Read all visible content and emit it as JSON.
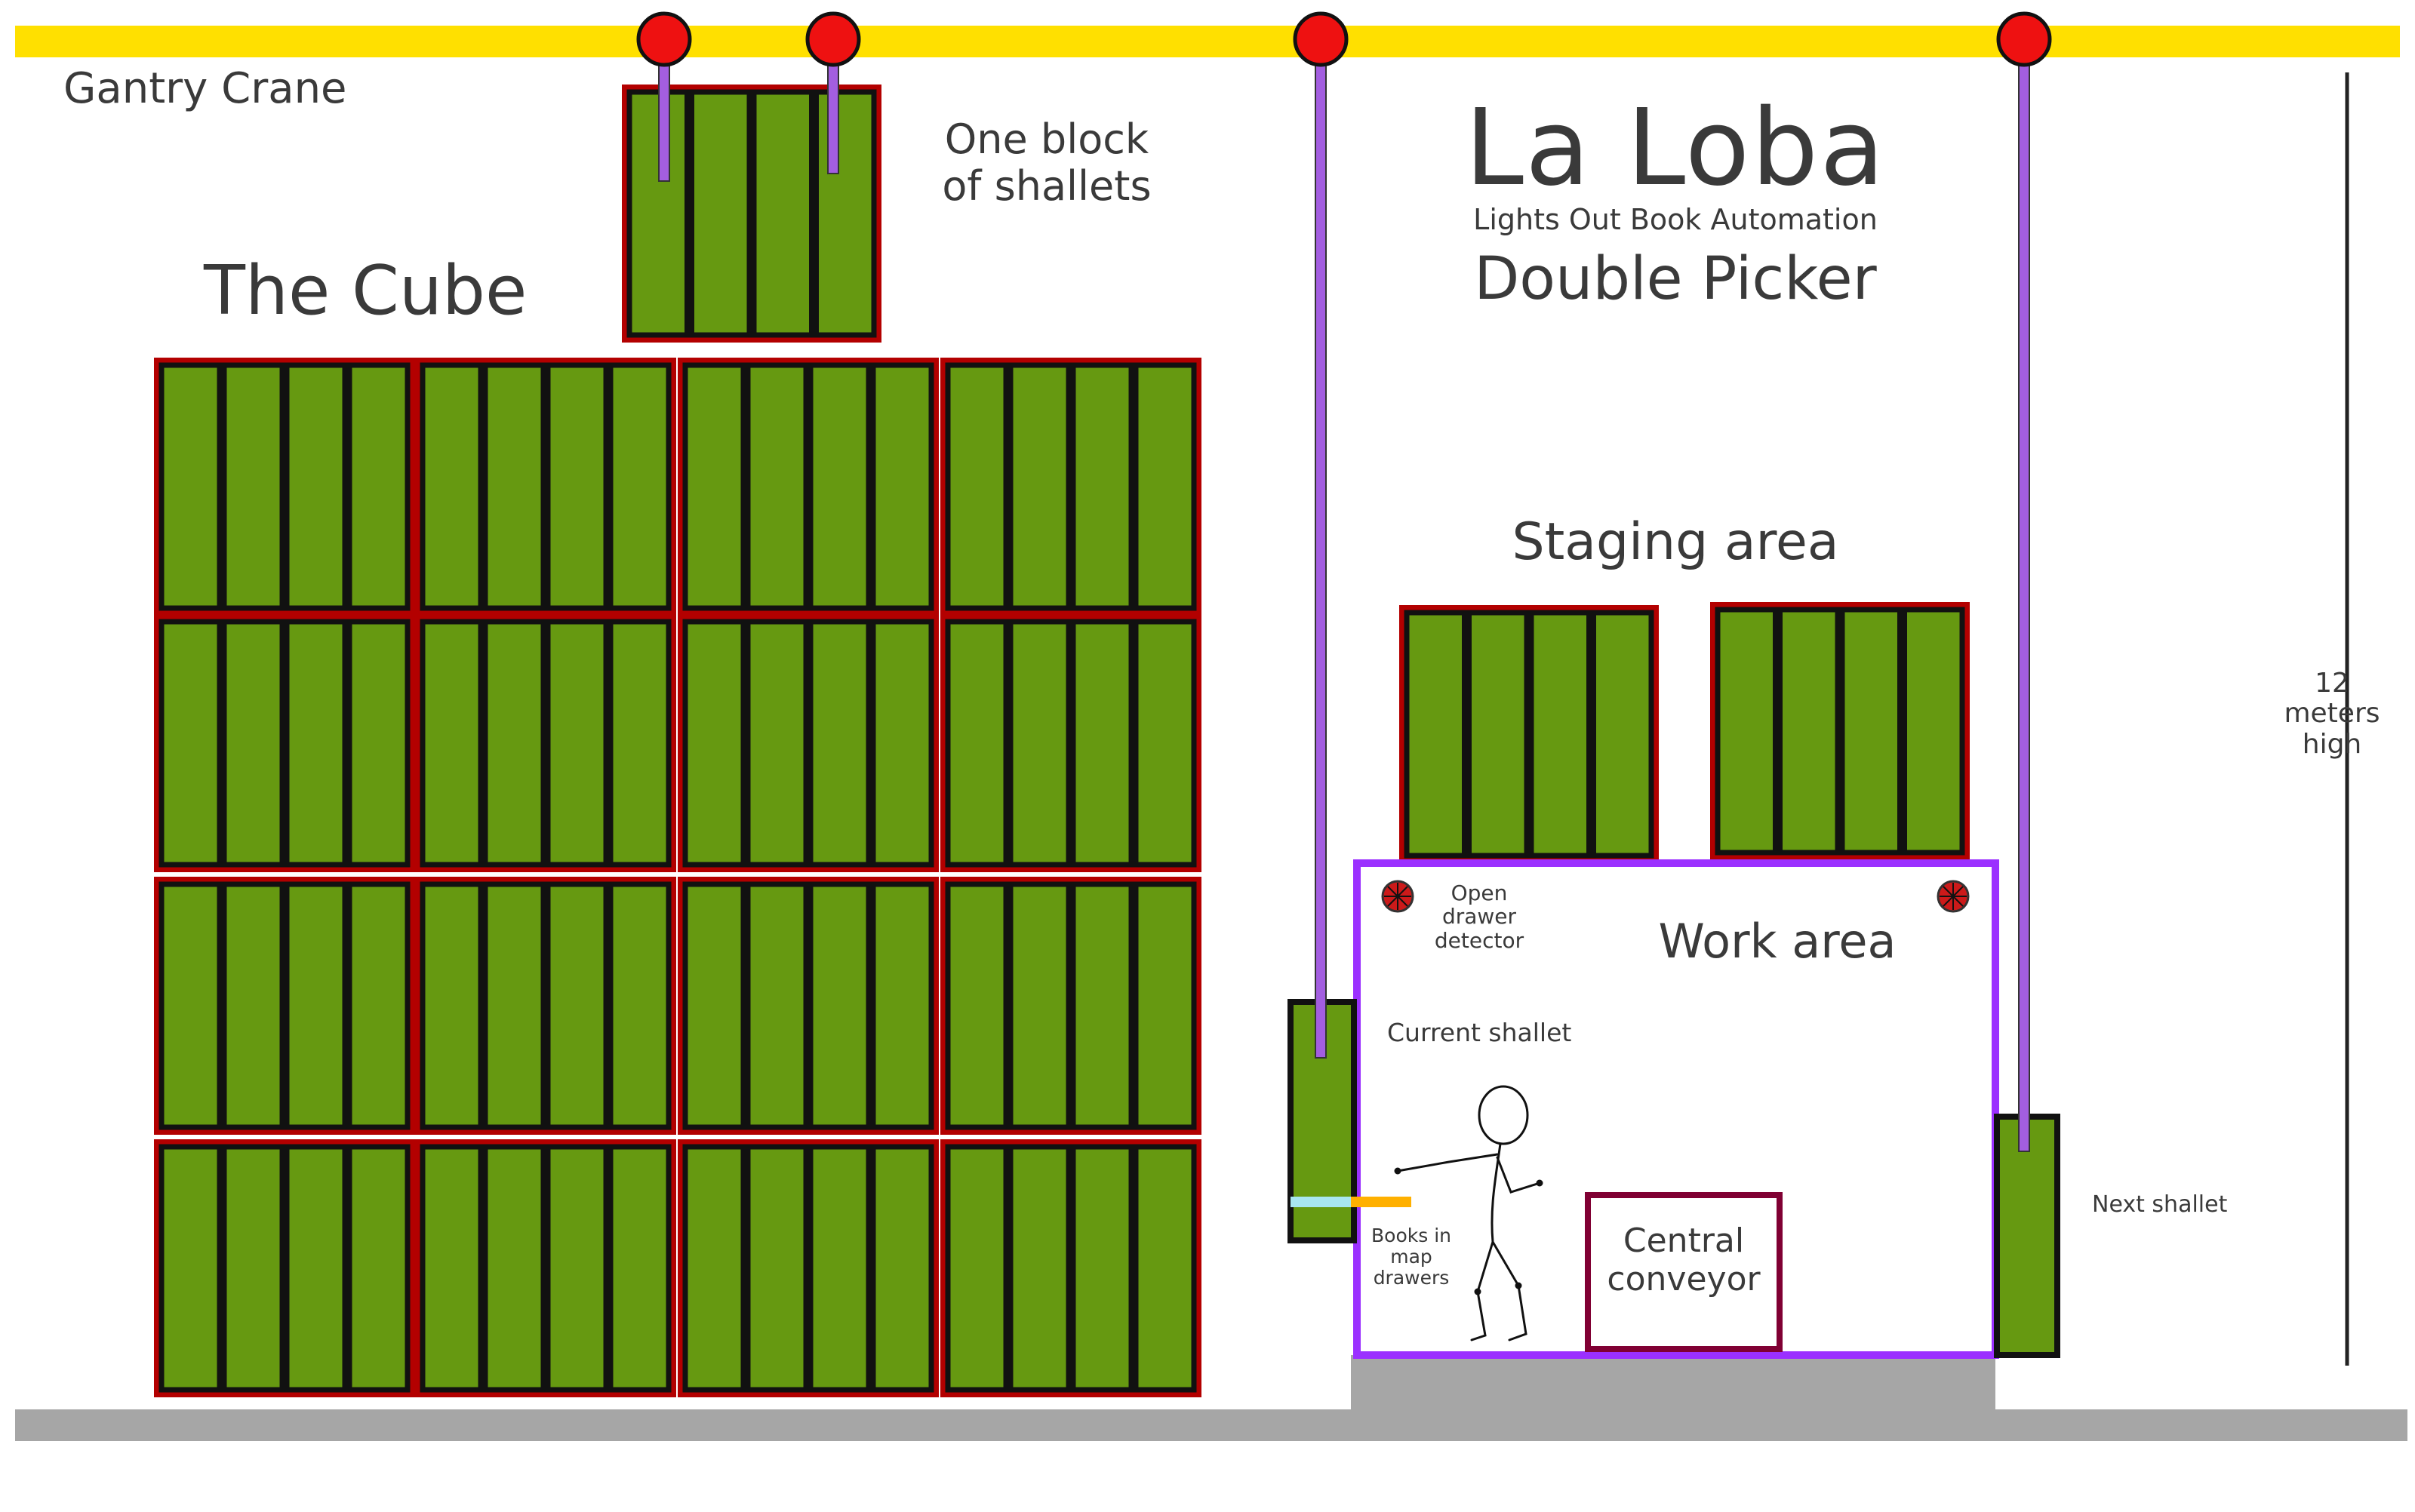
{
  "labels": {
    "gantry_crane": "Gantry Crane",
    "one_block": "One block\nof shallets",
    "the_cube": "The Cube",
    "title": "La Loba",
    "subtitle": "Lights Out Book Automation",
    "double_picker": "Double Picker",
    "staging_area": "Staging area",
    "work_area": "Work area",
    "open_drawer_detector": "Open\ndrawer\ndetector",
    "current_shallet": "Current shallet",
    "books_in_map_drawers": "Books in\nmap\ndrawers",
    "central_conveyor": "Central\nconveyor",
    "next_shallet": "Next shallet",
    "height_note": "12\nmeters\nhigh"
  },
  "colors": {
    "rail": "#ffe000",
    "crane_ball": "#ee1111",
    "cable": "#a35ee0",
    "shallet_fill": "#669911",
    "shallet_stroke": "#111111",
    "block_border": "#b30000",
    "work_area_border": "#9b30ff",
    "conveyor_border": "#800033",
    "floor": "#a6a6a6",
    "drawer_open": "#ffb000",
    "drawer_closed": "#a8e6f0"
  },
  "icons": [
    "crane-trolley-icon",
    "detector-icon",
    "person-figure"
  ]
}
